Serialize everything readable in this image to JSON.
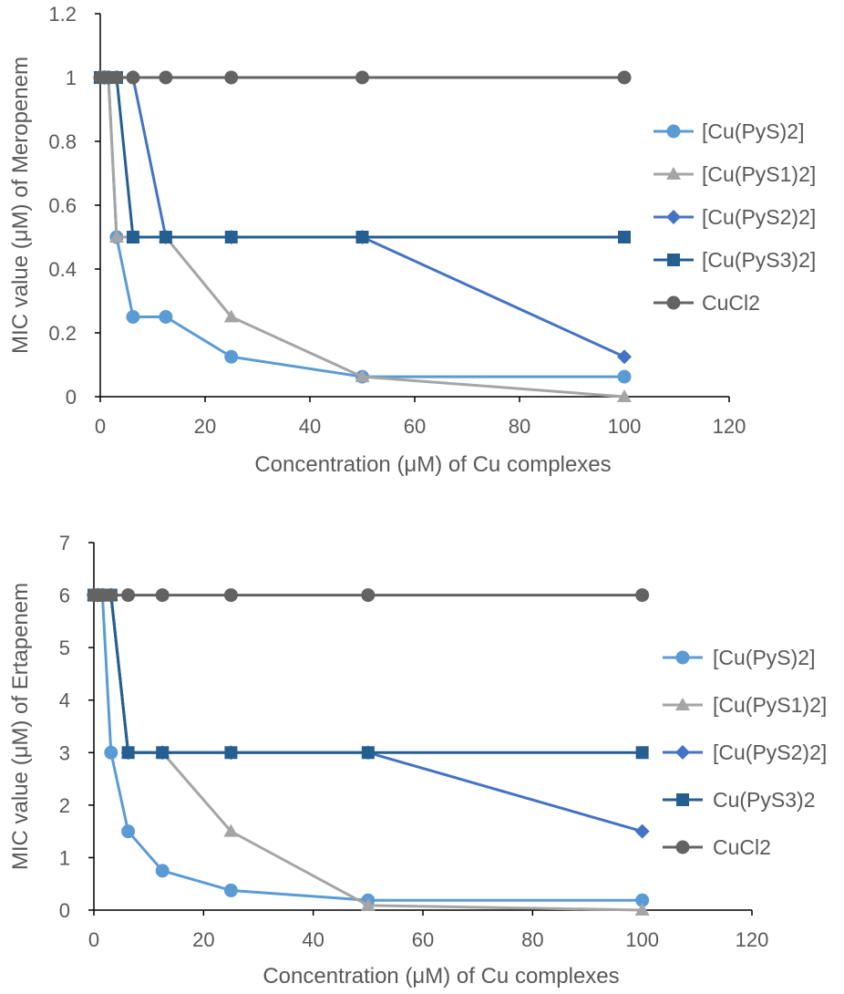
{
  "chart_data": [
    {
      "type": "line",
      "title": "",
      "xlabel": "Concentration (μM) of Cu complexes",
      "ylabel": "MIC value (μM) of Meropenem",
      "xlim": [
        0,
        120
      ],
      "ylim": [
        0,
        1.2
      ],
      "xticks": [
        "0",
        "20",
        "40",
        "60",
        "80",
        "100",
        "120"
      ],
      "yticks": [
        "0",
        "0.2",
        "0.4",
        "0.6",
        "0.8",
        "1",
        "1.2"
      ],
      "grid": false,
      "legend_position": "right",
      "series": [
        {
          "name": "[Cu(PyS)2]",
          "marker": "circle",
          "color": "#5B9BD5",
          "x": [
            0,
            0.78,
            1.56,
            3.125,
            6.25,
            12.5,
            25,
            50,
            100
          ],
          "y": [
            1,
            1,
            1,
            0.5,
            0.25,
            0.25,
            0.125,
            0.0625,
            0.0625
          ]
        },
        {
          "name": "[Cu(PyS1)2]",
          "marker": "triangle",
          "color": "#A5A5A5",
          "x": [
            0,
            0.78,
            1.56,
            3.125,
            6.25,
            12.5,
            25,
            50,
            100
          ],
          "y": [
            1,
            1,
            1,
            0.5,
            0.5,
            0.5,
            0.25,
            0.0625,
            0
          ]
        },
        {
          "name": "[Cu(PyS2)2]",
          "marker": "diamond",
          "color": "#4472C4",
          "x": [
            0,
            0.78,
            1.56,
            3.125,
            6.25,
            12.5,
            25,
            50,
            100
          ],
          "y": [
            1,
            1,
            1,
            1,
            1,
            0.5,
            0.5,
            0.5,
            0.125
          ]
        },
        {
          "name": "[Cu(PyS3)2]",
          "marker": "square",
          "color": "#255E91",
          "x": [
            0,
            0.78,
            1.56,
            3.125,
            6.25,
            12.5,
            25,
            50,
            100
          ],
          "y": [
            1,
            1,
            1,
            1,
            0.5,
            0.5,
            0.5,
            0.5,
            0.5
          ]
        },
        {
          "name": "CuCl2",
          "marker": "circle",
          "color": "#636363",
          "x": [
            0,
            0.78,
            1.56,
            3.125,
            6.25,
            12.5,
            25,
            50,
            100
          ],
          "y": [
            1,
            1,
            1,
            1,
            1,
            1,
            1,
            1,
            1
          ]
        }
      ]
    },
    {
      "type": "line",
      "title": "",
      "xlabel": "Concentration (μM) of Cu complexes",
      "ylabel": "MIC value (μM) of Ertapenem",
      "xlim": [
        0,
        120
      ],
      "ylim": [
        0,
        7
      ],
      "xticks": [
        "0",
        "20",
        "40",
        "60",
        "80",
        "100",
        "120"
      ],
      "yticks": [
        "0",
        "1",
        "2",
        "3",
        "4",
        "5",
        "6",
        "7"
      ],
      "grid": false,
      "legend_position": "right",
      "series": [
        {
          "name": "[Cu(PyS)2]",
          "marker": "circle",
          "color": "#5B9BD5",
          "x": [
            0,
            0.78,
            1.56,
            3.125,
            6.25,
            12.5,
            25,
            50,
            100
          ],
          "y": [
            6,
            6,
            6,
            3,
            1.5,
            0.75,
            0.375,
            0.1875,
            0.1875
          ]
        },
        {
          "name": "[Cu(PyS1)2]",
          "marker": "triangle",
          "color": "#A5A5A5",
          "x": [
            0,
            0.78,
            1.56,
            3.125,
            6.25,
            12.5,
            25,
            50,
            100
          ],
          "y": [
            6,
            6,
            6,
            6,
            3,
            3,
            1.5,
            0.09,
            0
          ]
        },
        {
          "name": "[Cu(PyS2)2]",
          "marker": "diamond",
          "color": "#4472C4",
          "x": [
            0,
            0.78,
            1.56,
            3.125,
            6.25,
            12.5,
            25,
            50,
            100
          ],
          "y": [
            6,
            6,
            6,
            6,
            3,
            3,
            3,
            3,
            1.5
          ]
        },
        {
          "name": "Cu(PyS3)2",
          "marker": "square",
          "color": "#255E91",
          "x": [
            0,
            0.78,
            1.56,
            3.125,
            6.25,
            12.5,
            25,
            50,
            100
          ],
          "y": [
            6,
            6,
            6,
            6,
            3,
            3,
            3,
            3,
            3
          ]
        },
        {
          "name": "CuCl2",
          "marker": "circle",
          "color": "#636363",
          "x": [
            0,
            0.78,
            1.56,
            3.125,
            6.25,
            12.5,
            25,
            50,
            100
          ],
          "y": [
            6,
            6,
            6,
            6,
            6,
            6,
            6,
            6,
            6
          ]
        }
      ]
    }
  ]
}
